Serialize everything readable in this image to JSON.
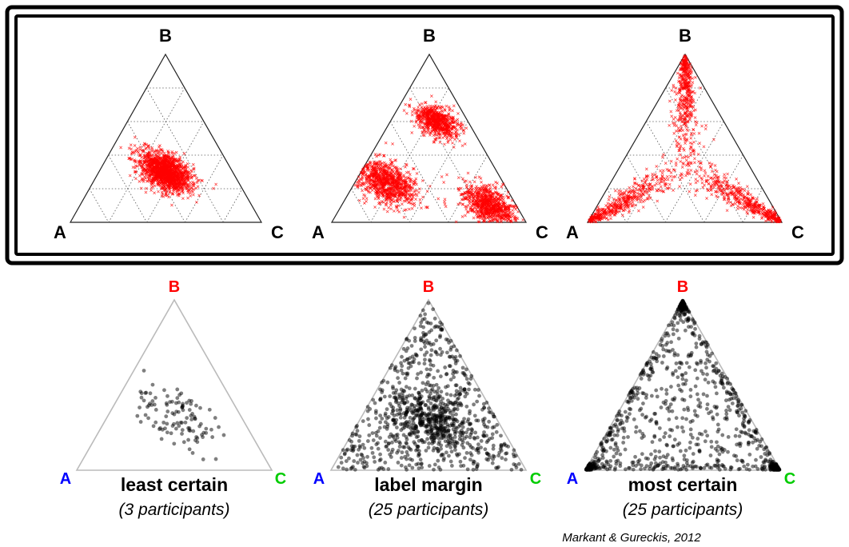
{
  "chart_data": [
    {
      "type": "scatter",
      "subtype": "ternary",
      "group": "top",
      "vertices": [
        "A",
        "B",
        "C"
      ],
      "vertex_colors": [
        "#000000",
        "#000000",
        "#000000"
      ],
      "marker": "x",
      "point_color": "#ff0000",
      "grid": "dotted triangular, 5 divisions",
      "clusters": [
        {
          "center": [
            0.35,
            0.3,
            0.35
          ],
          "spread": 0.06,
          "shape": "blob",
          "count": 1500
        }
      ]
    },
    {
      "type": "scatter",
      "subtype": "ternary",
      "group": "top",
      "vertices": [
        "A",
        "B",
        "C"
      ],
      "vertex_colors": [
        "#000000",
        "#000000",
        "#000000"
      ],
      "marker": "x",
      "point_color": "#ff0000",
      "grid": "dotted triangular, 5 divisions",
      "clusters": [
        {
          "center": [
            0.6,
            0.24,
            0.16
          ],
          "spread": 0.07,
          "shape": "blob",
          "count": 900
        },
        {
          "center": [
            0.16,
            0.6,
            0.24
          ],
          "spread": 0.05,
          "shape": "blob",
          "count": 700
        },
        {
          "center": [
            0.14,
            0.1,
            0.76
          ],
          "spread": 0.06,
          "shape": "blob",
          "count": 800
        }
      ]
    },
    {
      "type": "scatter",
      "subtype": "ternary",
      "group": "top",
      "vertices": [
        "A",
        "B",
        "C"
      ],
      "vertex_colors": [
        "#000000",
        "#000000",
        "#000000"
      ],
      "marker": "x",
      "point_color": "#ff0000",
      "grid": "dotted triangular, 5 divisions",
      "clusters": [
        {
          "shape": "arms-to-vertices",
          "count": 1400
        }
      ]
    },
    {
      "type": "scatter",
      "subtype": "ternary",
      "group": "bottom",
      "vertices": [
        "A",
        "B",
        "C"
      ],
      "vertex_colors": [
        "#0000ff",
        "#ff0000",
        "#00cc00"
      ],
      "marker": "dot",
      "point_color": "#000000",
      "caption": "least certain",
      "subcaption": "(3 participants)",
      "clusters": [
        {
          "center": [
            0.33,
            0.33,
            0.34
          ],
          "spread": 0.1,
          "shape": "sparse",
          "count": 110
        }
      ]
    },
    {
      "type": "scatter",
      "subtype": "ternary",
      "group": "bottom",
      "vertices": [
        "A",
        "B",
        "C"
      ],
      "vertex_colors": [
        "#0000ff",
        "#ff0000",
        "#00cc00"
      ],
      "marker": "dot",
      "point_color": "#000000",
      "caption": "label margin",
      "subcaption": "(25 participants)",
      "clusters": [
        {
          "shape": "uniform-with-center",
          "count": 1000
        }
      ]
    },
    {
      "type": "scatter",
      "subtype": "ternary",
      "group": "bottom",
      "vertices": [
        "A",
        "B",
        "C"
      ],
      "vertex_colors": [
        "#0000ff",
        "#ff0000",
        "#00cc00"
      ],
      "marker": "dot",
      "point_color": "#000000",
      "caption": "most certain",
      "subcaption": "(25 participants)",
      "clusters": [
        {
          "shape": "edges-and-vertices",
          "count": 1000
        }
      ]
    }
  ],
  "credit": "Markant & Gureckis, 2012",
  "colors": {
    "frame": "#000000",
    "red_points": "#ff0000",
    "black_points": "#000000"
  }
}
